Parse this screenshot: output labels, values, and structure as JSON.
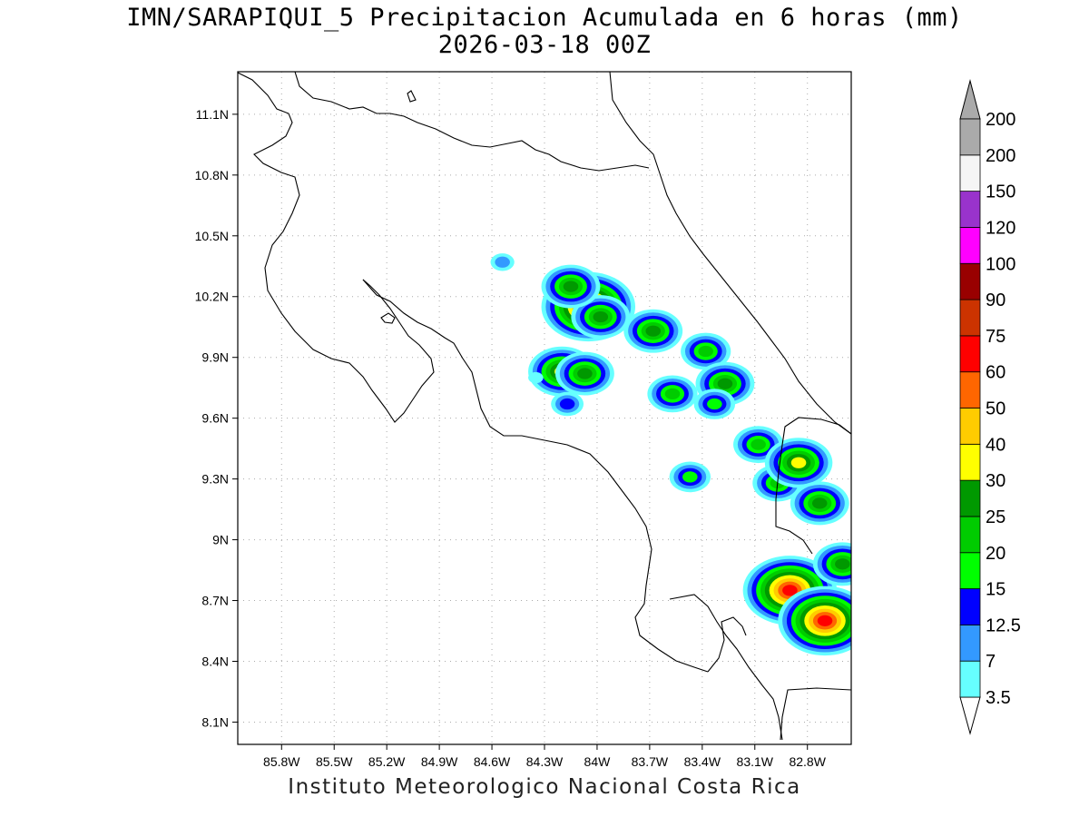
{
  "title": "IMN/SARAPIQUI_5 Precipitacion Acumulada en 6 horas (mm)",
  "subtitle": "2026-03-18 00Z",
  "footer": "Instituto Meteorologico Nacional Costa Rica",
  "map": {
    "lon_range": [
      -86.05,
      -82.55
    ],
    "lat_range": [
      7.99,
      11.31
    ],
    "x_ticks": [
      {
        "lon": -85.8,
        "label": "85.8W"
      },
      {
        "lon": -85.5,
        "label": "85.5W"
      },
      {
        "lon": -85.2,
        "label": "85.2W"
      },
      {
        "lon": -84.9,
        "label": "84.9W"
      },
      {
        "lon": -84.6,
        "label": "84.6W"
      },
      {
        "lon": -84.3,
        "label": "84.3W"
      },
      {
        "lon": -84.0,
        "label": "84W"
      },
      {
        "lon": -83.7,
        "label": "83.7W"
      },
      {
        "lon": -83.4,
        "label": "83.4W"
      },
      {
        "lon": -83.1,
        "label": "83.1W"
      },
      {
        "lon": -82.8,
        "label": "82.8W"
      }
    ],
    "y_ticks": [
      {
        "lat": 8.1,
        "label": "8.1N"
      },
      {
        "lat": 8.4,
        "label": "8.4N"
      },
      {
        "lat": 8.7,
        "label": "8.7N"
      },
      {
        "lat": 9.0,
        "label": "9N"
      },
      {
        "lat": 9.3,
        "label": "9.3N"
      },
      {
        "lat": 9.6,
        "label": "9.6N"
      },
      {
        "lat": 9.9,
        "label": "9.9N"
      },
      {
        "lat": 10.2,
        "label": "10.2N"
      },
      {
        "lat": 10.5,
        "label": "10.5N"
      },
      {
        "lat": 10.8,
        "label": "10.8N"
      },
      {
        "lat": 11.1,
        "label": "11.1N"
      }
    ],
    "grid": true
  },
  "legend": {
    "levels": [
      {
        "label": "3.5",
        "color": "#66ffff"
      },
      {
        "label": "7",
        "color": "#3399ff"
      },
      {
        "label": "12.5",
        "color": "#0000ff"
      },
      {
        "label": "15",
        "color": "#00ff00"
      },
      {
        "label": "20",
        "color": "#00cc00"
      },
      {
        "label": "25",
        "color": "#009900"
      },
      {
        "label": "30",
        "color": "#ffff00"
      },
      {
        "label": "40",
        "color": "#ffcc00"
      },
      {
        "label": "50",
        "color": "#ff6600"
      },
      {
        "label": "60",
        "color": "#ff0000"
      },
      {
        "label": "75",
        "color": "#cc3300"
      },
      {
        "label": "90",
        "color": "#990000"
      },
      {
        "label": "100",
        "color": "#ff00ff"
      },
      {
        "label": "120",
        "color": "#9933cc"
      },
      {
        "label": "150",
        "color": "#f5f5f5"
      },
      {
        "label": "200",
        "color": "#aaaaaa"
      }
    ],
    "low_end_color": "#ffffff",
    "high_end_color": "#aaaaaa"
  },
  "precip_cells": [
    {
      "lon": -84.05,
      "lat": 10.15,
      "level": 9
    },
    {
      "lon": -83.98,
      "lat": 10.1,
      "level": 5
    },
    {
      "lon": -84.15,
      "lat": 10.25,
      "level": 5
    },
    {
      "lon": -84.2,
      "lat": 9.83,
      "level": 6
    },
    {
      "lon": -84.07,
      "lat": 9.82,
      "level": 5
    },
    {
      "lon": -83.68,
      "lat": 10.03,
      "level": 5
    },
    {
      "lon": -83.57,
      "lat": 9.72,
      "level": 4
    },
    {
      "lon": -83.38,
      "lat": 9.93,
      "level": 4
    },
    {
      "lon": -83.27,
      "lat": 9.77,
      "level": 5
    },
    {
      "lon": -83.33,
      "lat": 9.67,
      "level": 3
    },
    {
      "lon": -83.08,
      "lat": 9.47,
      "level": 4
    },
    {
      "lon": -82.97,
      "lat": 9.28,
      "level": 4
    },
    {
      "lon": -82.85,
      "lat": 9.38,
      "level": 6
    },
    {
      "lon": -82.73,
      "lat": 9.18,
      "level": 5
    },
    {
      "lon": -82.9,
      "lat": 8.75,
      "level": 9
    },
    {
      "lon": -82.7,
      "lat": 8.6,
      "level": 9
    },
    {
      "lon": -82.6,
      "lat": 8.88,
      "level": 5
    },
    {
      "lon": -84.54,
      "lat": 10.37,
      "level": 1
    },
    {
      "lon": -83.47,
      "lat": 9.31,
      "level": 3
    },
    {
      "lon": -84.35,
      "lat": 9.8,
      "level": 0
    },
    {
      "lon": -84.17,
      "lat": 9.67,
      "level": 2
    }
  ]
}
